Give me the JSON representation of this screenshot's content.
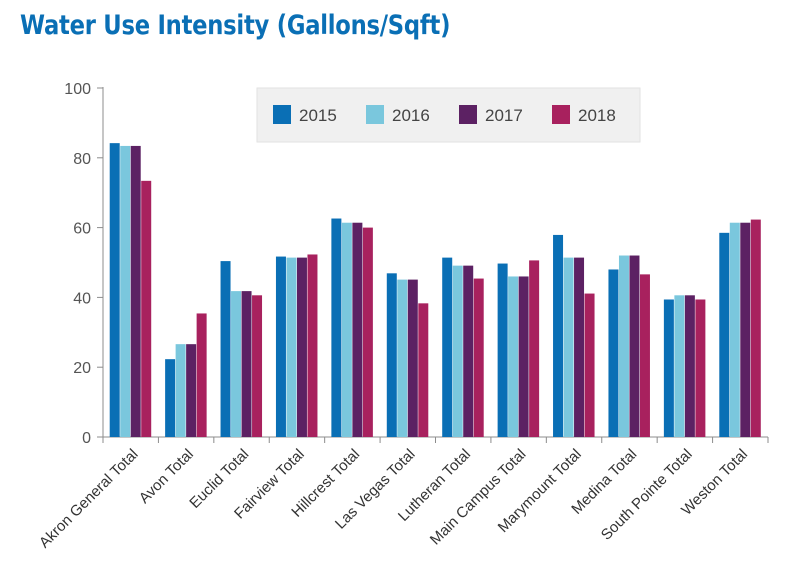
{
  "chart_data": {
    "type": "bar",
    "title": "Water Use Intensity (Gallons/Sqft)",
    "categories": [
      "Akron General Total",
      "Avon Total",
      "Euclid Total",
      "Fairview Total",
      "Hillcrest Total",
      "Las Vegas Total",
      "Lutheran Total",
      "Main Campus Total",
      "Marymount Total",
      "Medina Total",
      "South Pointe Total",
      "Weston Total"
    ],
    "series": [
      {
        "name": "2015",
        "color": "#0a6fb5",
        "values": [
          84.2,
          22.3,
          50.4,
          51.7,
          62.6,
          46.9,
          51.4,
          49.7,
          57.9,
          48.0,
          39.4,
          58.5
        ]
      },
      {
        "name": "2016",
        "color": "#7ac7dd",
        "values": [
          83.4,
          26.6,
          41.8,
          51.4,
          61.4,
          45.1,
          49.1,
          46.0,
          51.4,
          52.0,
          40.6,
          61.4
        ]
      },
      {
        "name": "2017",
        "color": "#5c2163",
        "values": [
          83.4,
          26.6,
          41.8,
          51.4,
          61.4,
          45.1,
          49.1,
          46.0,
          51.4,
          52.0,
          40.6,
          61.4
        ]
      },
      {
        "name": "2018",
        "color": "#a8215e",
        "values": [
          73.4,
          35.4,
          40.6,
          52.3,
          60.0,
          38.3,
          45.4,
          50.6,
          41.1,
          46.6,
          39.4,
          62.3
        ]
      }
    ],
    "ylim": [
      0,
      100
    ],
    "yticks": [
      0,
      20,
      40,
      60,
      80,
      100
    ],
    "grid": false,
    "legend_position": "top-right"
  }
}
